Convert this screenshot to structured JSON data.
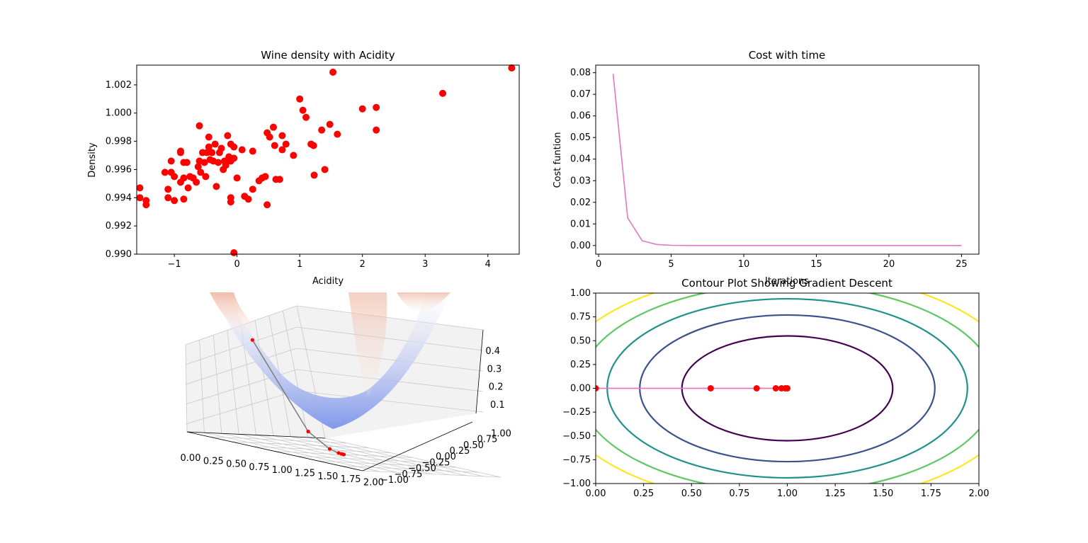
{
  "chart_data": [
    {
      "type": "scatter",
      "title": "Wine density with Acidity",
      "xlabel": "Acidity",
      "ylabel": "Density",
      "xlim": [
        -1.6,
        4.5
      ],
      "ylim": [
        0.99,
        1.0034
      ],
      "xticks": [
        -1,
        0,
        1,
        2,
        3,
        4
      ],
      "yticks": [
        0.99,
        0.992,
        0.994,
        0.996,
        0.998,
        1.0,
        1.002
      ],
      "ytick_labels": [
        "0.990",
        "0.992",
        "0.994",
        "0.996",
        "0.998",
        "1.000",
        "1.002"
      ],
      "color": "#ff0000",
      "points": [
        [
          -1.55,
          0.9947
        ],
        [
          -1.55,
          0.994
        ],
        [
          -1.45,
          0.9938
        ],
        [
          -1.45,
          0.9935
        ],
        [
          -1.15,
          0.9958
        ],
        [
          -1.1,
          0.9946
        ],
        [
          -1.1,
          0.994
        ],
        [
          -1.05,
          0.9966
        ],
        [
          -1.05,
          0.9958
        ],
        [
          -1.0,
          0.9955
        ],
        [
          -1.0,
          0.9938
        ],
        [
          -0.9,
          0.9951
        ],
        [
          -0.9,
          0.9972
        ],
        [
          -0.9,
          0.9973
        ],
        [
          -0.85,
          0.9965
        ],
        [
          -0.85,
          0.9954
        ],
        [
          -0.85,
          0.9939
        ],
        [
          -0.8,
          0.9965
        ],
        [
          -0.78,
          0.9947
        ],
        [
          -0.75,
          0.9955
        ],
        [
          -0.7,
          0.9954
        ],
        [
          -0.65,
          0.9951
        ],
        [
          -0.62,
          0.9962
        ],
        [
          -0.6,
          0.9991
        ],
        [
          -0.6,
          0.9966
        ],
        [
          -0.58,
          0.9958
        ],
        [
          -0.55,
          0.9972
        ],
        [
          -0.52,
          0.9965
        ],
        [
          -0.5,
          0.9955
        ],
        [
          -0.48,
          0.9972
        ],
        [
          -0.45,
          0.9983
        ],
        [
          -0.45,
          0.9976
        ],
        [
          -0.43,
          0.9967
        ],
        [
          -0.4,
          0.9972
        ],
        [
          -0.38,
          0.9966
        ],
        [
          -0.35,
          0.9978
        ],
        [
          -0.33,
          0.9948
        ],
        [
          -0.3,
          0.9965
        ],
        [
          -0.28,
          0.9972
        ],
        [
          -0.25,
          0.9975
        ],
        [
          -0.22,
          0.996
        ],
        [
          -0.2,
          0.9966
        ],
        [
          -0.18,
          0.9963
        ],
        [
          -0.15,
          0.9984
        ],
        [
          -0.13,
          0.9969
        ],
        [
          -0.1,
          0.9978
        ],
        [
          -0.1,
          0.9966
        ],
        [
          -0.1,
          0.9937
        ],
        [
          -0.1,
          0.994
        ],
        [
          -0.05,
          0.9976
        ],
        [
          -0.05,
          0.9968
        ],
        [
          -0.05,
          0.9901
        ],
        [
          0.0,
          0.9954
        ],
        [
          0.08,
          0.9974
        ],
        [
          0.12,
          0.9941
        ],
        [
          0.18,
          0.9939
        ],
        [
          0.25,
          0.9973
        ],
        [
          0.25,
          0.9946
        ],
        [
          0.35,
          0.9952
        ],
        [
          0.4,
          0.9954
        ],
        [
          0.45,
          0.9955
        ],
        [
          0.48,
          0.9986
        ],
        [
          0.48,
          0.9935
        ],
        [
          0.52,
          0.9983
        ],
        [
          0.58,
          0.999
        ],
        [
          0.6,
          0.9977
        ],
        [
          0.62,
          0.9953
        ],
        [
          0.68,
          0.9953
        ],
        [
          0.72,
          0.9984
        ],
        [
          0.72,
          0.9974
        ],
        [
          0.78,
          0.9978
        ],
        [
          0.9,
          0.997
        ],
        [
          1.0,
          1.001
        ],
        [
          1.05,
          1.0002
        ],
        [
          1.1,
          0.9997
        ],
        [
          1.18,
          0.9978
        ],
        [
          1.22,
          0.9977
        ],
        [
          1.23,
          0.9956
        ],
        [
          1.35,
          0.9988
        ],
        [
          1.4,
          0.996
        ],
        [
          1.48,
          0.9992
        ],
        [
          1.53,
          1.0029
        ],
        [
          1.6,
          0.9985
        ],
        [
          2.0,
          1.0003
        ],
        [
          2.22,
          1.0004
        ],
        [
          2.22,
          0.9988
        ],
        [
          3.28,
          1.0014
        ],
        [
          4.38,
          1.0032
        ]
      ]
    },
    {
      "type": "line",
      "title": "Cost with time",
      "xlabel": "Iterations",
      "ylabel": "Cost funtion",
      "xlim": [
        -0.2,
        26.2
      ],
      "ylim": [
        -0.004,
        0.0835
      ],
      "xticks": [
        0,
        5,
        10,
        15,
        20,
        25
      ],
      "yticks": [
        0.0,
        0.01,
        0.02,
        0.03,
        0.04,
        0.05,
        0.06,
        0.07,
        0.08
      ],
      "ytick_labels": [
        "0.00",
        "0.01",
        "0.02",
        "0.03",
        "0.04",
        "0.05",
        "0.06",
        "0.07",
        "0.08"
      ],
      "color": "#e377c2",
      "x": [
        1,
        2,
        3,
        4,
        5,
        6,
        7,
        8,
        9,
        10,
        11,
        12,
        13,
        14,
        15,
        16,
        17,
        18,
        19,
        20,
        21,
        22,
        23,
        24,
        25
      ],
      "y": [
        0.0795,
        0.0128,
        0.0022,
        0.0005,
        0.0001,
        2e-05,
        0,
        0,
        0,
        0,
        0,
        0,
        0,
        0,
        0,
        0,
        0,
        0,
        0,
        0,
        0,
        0,
        0,
        0,
        0
      ]
    },
    {
      "type": "surface3d",
      "title": "",
      "x_ticks": [
        "0.00",
        "0.25",
        "0.50",
        "0.75",
        "1.00",
        "1.25",
        "1.50",
        "1.75",
        "2.00"
      ],
      "y_ticks": [
        "-1.00",
        "-0.75",
        "-0.50",
        "-0.25",
        "0.00",
        "0.25",
        "0.50",
        "0.75",
        "1.00"
      ],
      "z_ticks": [
        "0.1",
        "0.2",
        "0.3",
        "0.4"
      ],
      "path_color": "#808080",
      "point_color": "#ff0000",
      "path_x": [
        0.0,
        0.6,
        0.84,
        0.94,
        0.97,
        0.99,
        1.0
      ],
      "path_y": [
        0,
        0,
        0,
        0,
        0,
        0,
        0
      ]
    },
    {
      "type": "contour",
      "title": "Contour Plot Showing Gradient Descent",
      "xlim": [
        0.0,
        2.0
      ],
      "ylim": [
        -1.0,
        1.0
      ],
      "xticks": [
        0.0,
        0.25,
        0.5,
        0.75,
        1.0,
        1.25,
        1.5,
        1.75,
        2.0
      ],
      "xtick_labels": [
        "0.00",
        "0.25",
        "0.50",
        "0.75",
        "1.00",
        "1.25",
        "1.50",
        "1.75",
        "2.00"
      ],
      "yticks": [
        -1.0,
        -0.75,
        -0.5,
        -0.25,
        0.0,
        0.25,
        0.5,
        0.75,
        1.0
      ],
      "ytick_labels": [
        "−1.00",
        "−0.75",
        "−0.50",
        "−0.25",
        "0.00",
        "0.25",
        "0.50",
        "0.75",
        "1.00"
      ],
      "levels": [
        {
          "ax": 0.55,
          "by": 0.55,
          "color": "#440154"
        },
        {
          "ax": 0.77,
          "by": 0.77,
          "color": "#3b528b"
        },
        {
          "ax": 0.94,
          "by": 0.94,
          "color": "#21918c"
        },
        {
          "ax": 1.09,
          "by": 1.09,
          "color": "#5ec962"
        },
        {
          "ax": 1.22,
          "by": 1.22,
          "color": "#fde725"
        }
      ],
      "path_color": "#e377c2",
      "point_color": "#ff0000",
      "path_x": [
        0.0,
        0.6,
        0.84,
        0.94,
        0.97,
        0.99,
        1.0
      ],
      "path_y": [
        0,
        0,
        0,
        0,
        0,
        0,
        0
      ]
    }
  ]
}
